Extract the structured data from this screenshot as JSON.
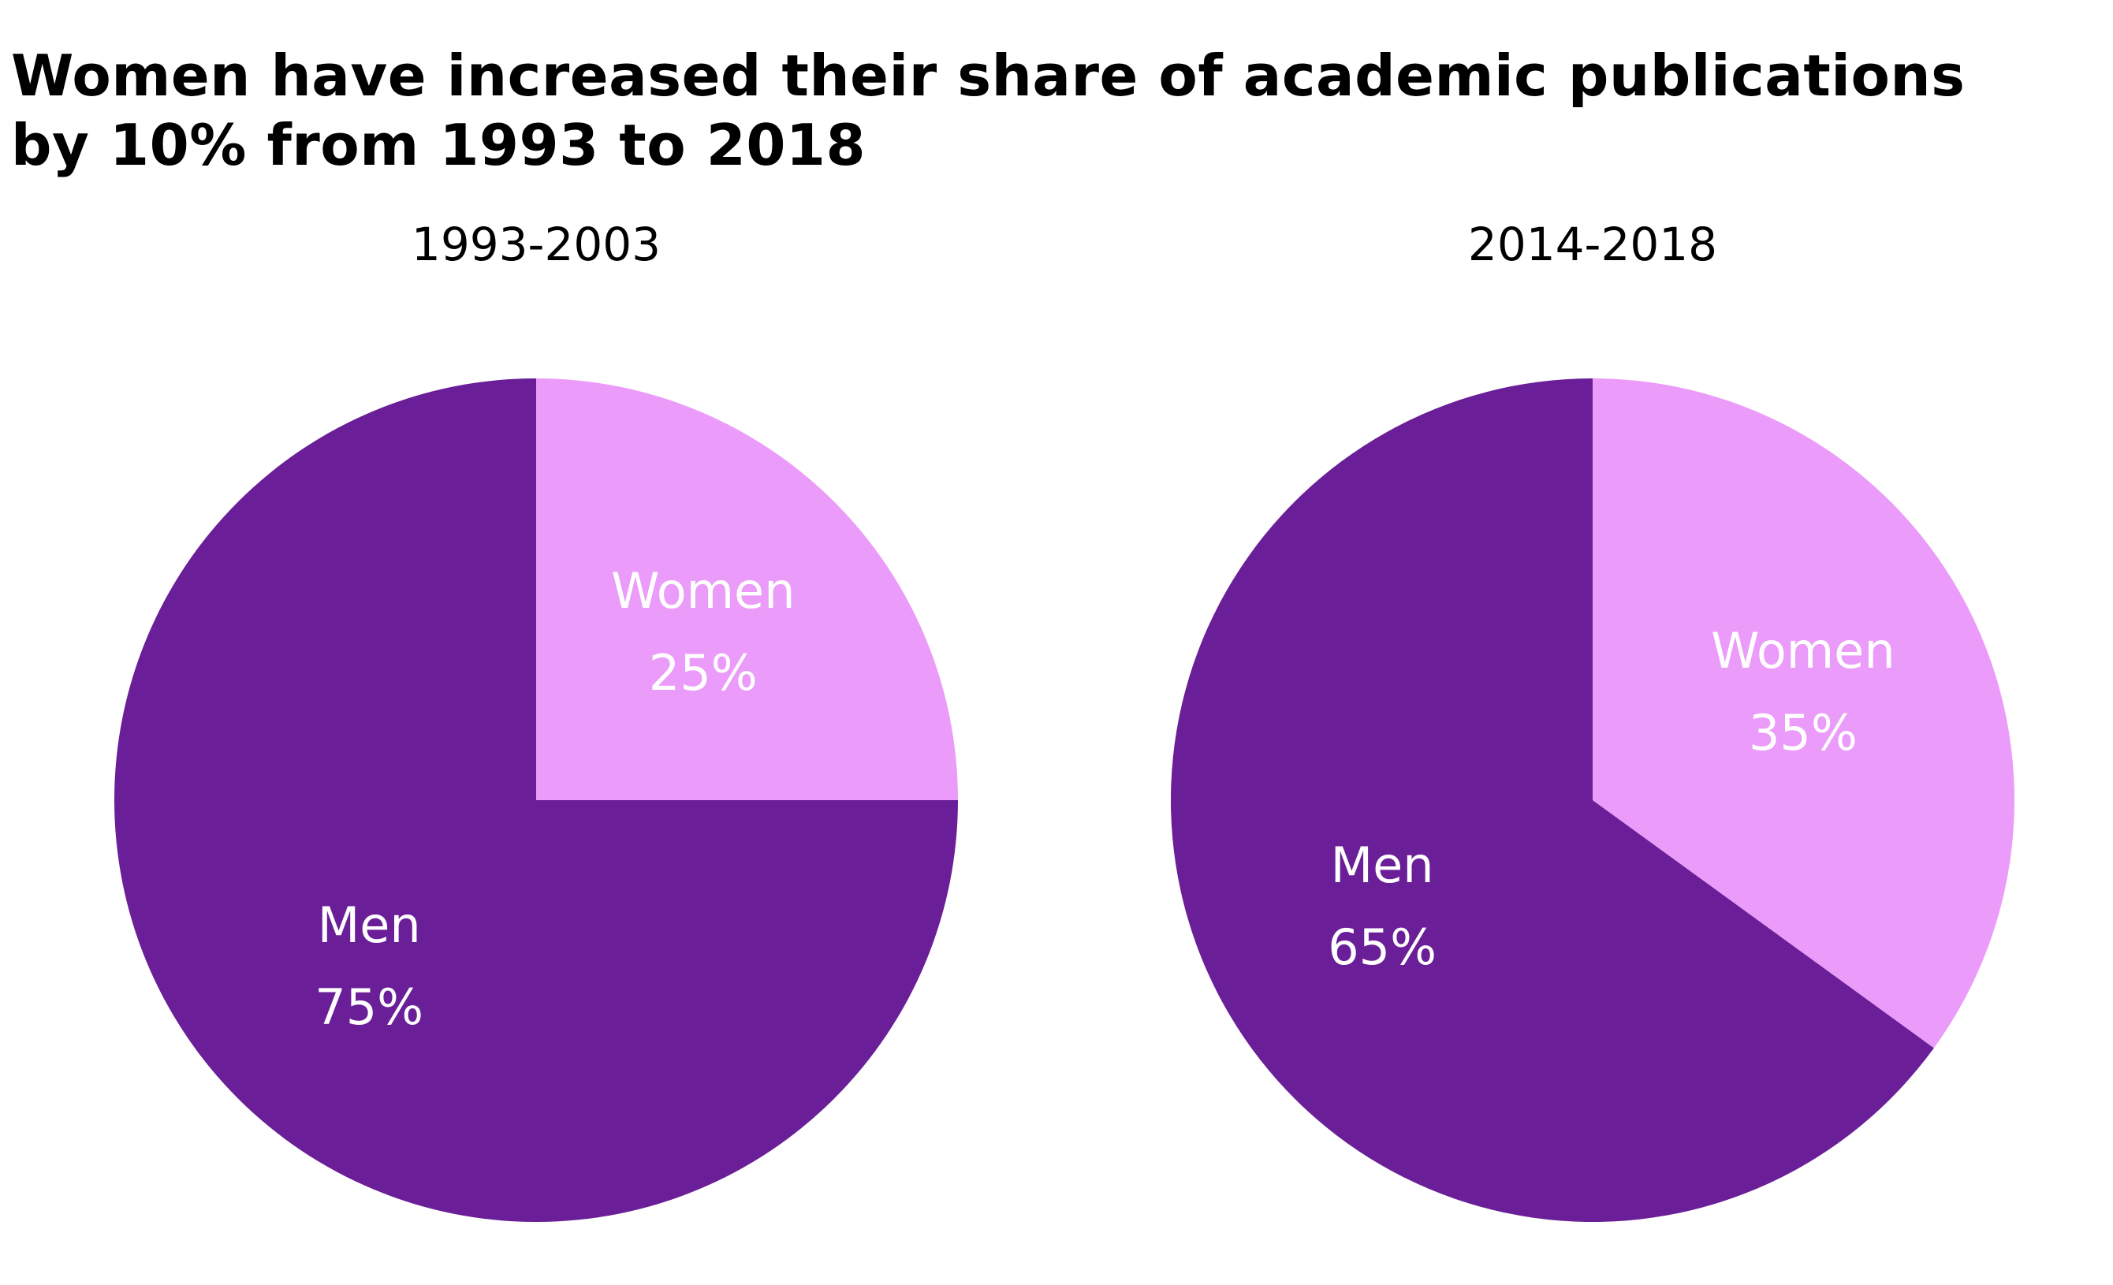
{
  "title": {
    "line1": "Women have increased their share of academic publications",
    "line2": "by 10% from 1993 to 2018"
  },
  "colors": {
    "men": "#6a1e97",
    "women": "#eb9bf9"
  },
  "chart_data": [
    {
      "type": "pie",
      "subtitle": "1993-2003",
      "slices": [
        {
          "label": "Women",
          "value": 25,
          "value_label": "25%",
          "color": "#eb9bf9"
        },
        {
          "label": "Men",
          "value": 75,
          "value_label": "75%",
          "color": "#6a1e97"
        }
      ]
    },
    {
      "type": "pie",
      "subtitle": "2014-2018",
      "slices": [
        {
          "label": "Women",
          "value": 35,
          "value_label": "35%",
          "color": "#eb9bf9"
        },
        {
          "label": "Men",
          "value": 65,
          "value_label": "65%",
          "color": "#6a1e97"
        }
      ]
    }
  ]
}
